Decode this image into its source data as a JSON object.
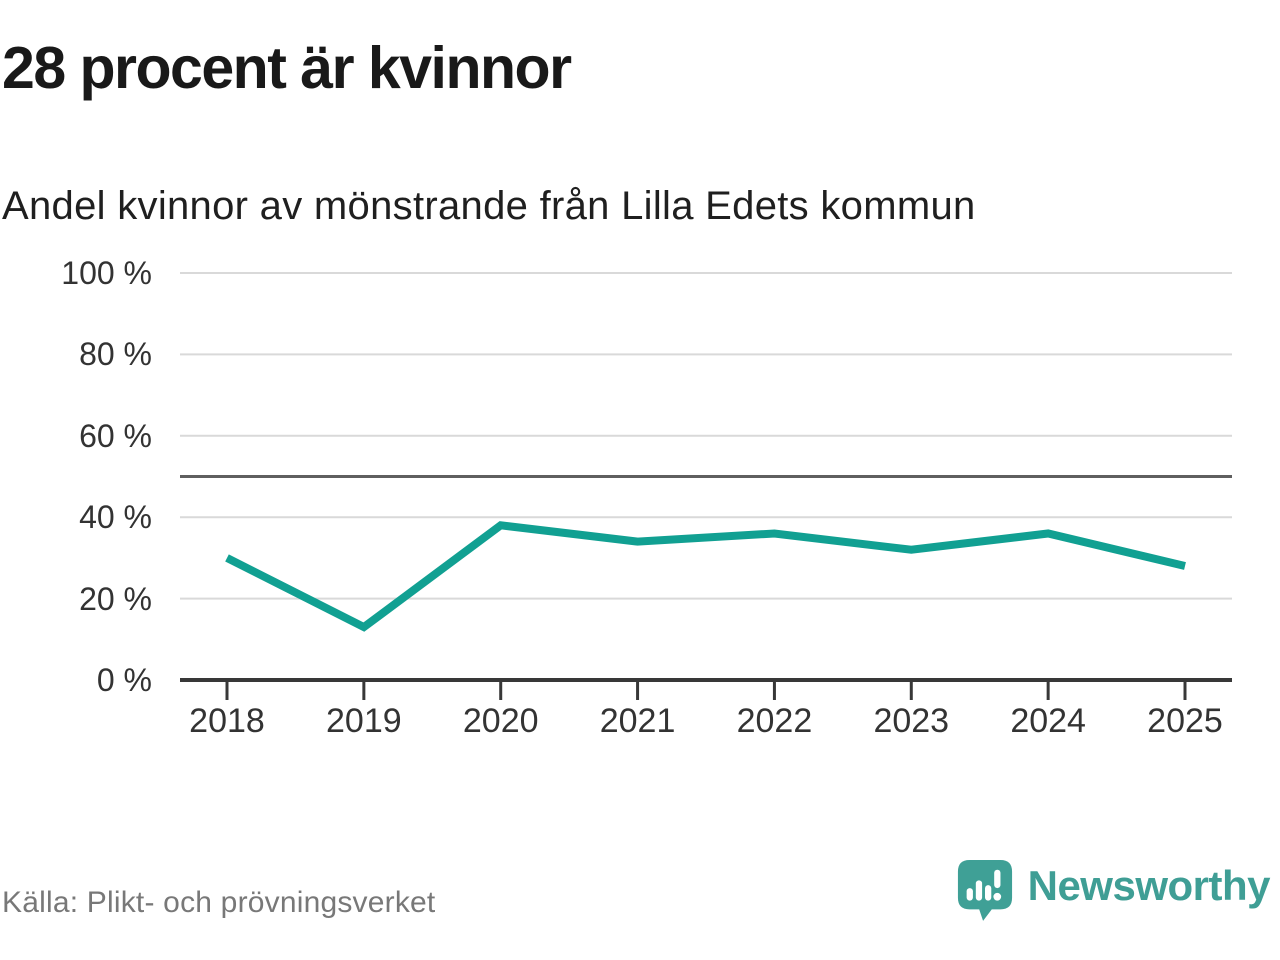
{
  "header": {
    "title": "28 procent är kvinnor",
    "subtitle": "Andel kvinnor av mönstrande från Lilla Edets kommun"
  },
  "chart_data": {
    "type": "line",
    "categories": [
      "2018",
      "2019",
      "2020",
      "2021",
      "2022",
      "2023",
      "2024",
      "2025"
    ],
    "series": [
      {
        "name": "Andel kvinnor av mönstrande",
        "values": [
          30,
          13,
          38,
          34,
          36,
          32,
          36,
          28
        ]
      }
    ],
    "title": "28 procent är kvinnor",
    "subtitle": "Andel kvinnor av mönstrande från Lilla Edets kommun",
    "xlabel": "",
    "ylabel": "",
    "ylim": [
      0,
      100
    ],
    "yticks": [
      0,
      20,
      40,
      60,
      80,
      100
    ],
    "ytick_suffix": " %",
    "reference_line": 50,
    "grid": true,
    "legend": false,
    "line_color": "#11a092",
    "grid_color": "#d9d9d9",
    "axis_color": "#383838",
    "reference_color": "#5f5f5f"
  },
  "footer": {
    "source": "Källa: Plikt- och prövningsverket",
    "brand": "Newsworthy"
  },
  "colors": {
    "brand_teal": "#3fa096",
    "title_text": "#191919",
    "tick_text": "#333333",
    "source_text": "#787878"
  }
}
